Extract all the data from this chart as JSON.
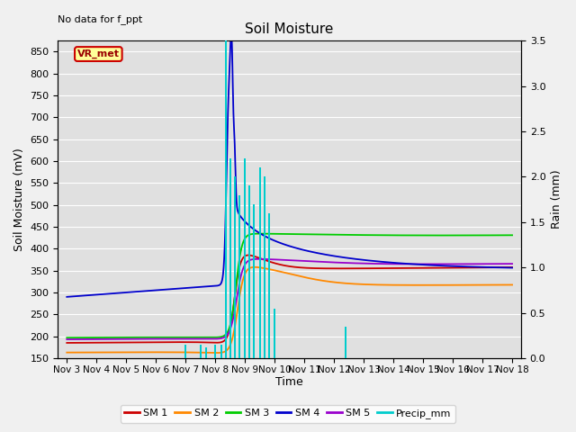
{
  "title": "Soil Moisture",
  "xlabel": "Time",
  "ylabel_left": "Soil Moisture (mV)",
  "ylabel_right": "Rain (mm)",
  "no_data_text": "No data for f_ppt",
  "vr_label": "VR_met",
  "ylim_left": [
    150,
    875
  ],
  "ylim_right": [
    0.0,
    3.5
  ],
  "yticks_left": [
    150,
    200,
    250,
    300,
    350,
    400,
    450,
    500,
    550,
    600,
    650,
    700,
    750,
    800,
    850
  ],
  "yticks_right": [
    0.0,
    0.5,
    1.0,
    1.5,
    2.0,
    2.5,
    3.0,
    3.5
  ],
  "bg_color": "#e0e0e0",
  "grid_color": "#ffffff",
  "fig_color": "#f0f0f0",
  "colors": {
    "SM1": "#cc0000",
    "SM2": "#ff8800",
    "SM3": "#00cc00",
    "SM4": "#0000cc",
    "SM5": "#9900cc",
    "Precip": "#00cccc"
  },
  "legend_labels": [
    "SM 1",
    "SM 2",
    "SM 3",
    "SM 4",
    "SM 5",
    "Precip_mm"
  ],
  "precip_days": [
    4.0,
    4.5,
    4.7,
    5.0,
    5.2,
    5.35,
    5.5,
    5.65,
    5.8,
    6.0,
    6.15,
    6.3,
    6.5,
    6.65,
    6.8,
    7.0,
    9.4
  ],
  "precip_vals": [
    0.15,
    0.15,
    0.12,
    0.15,
    0.15,
    3.5,
    2.2,
    2.0,
    1.8,
    2.2,
    1.9,
    1.7,
    2.1,
    2.0,
    1.6,
    0.55,
    0.35
  ]
}
